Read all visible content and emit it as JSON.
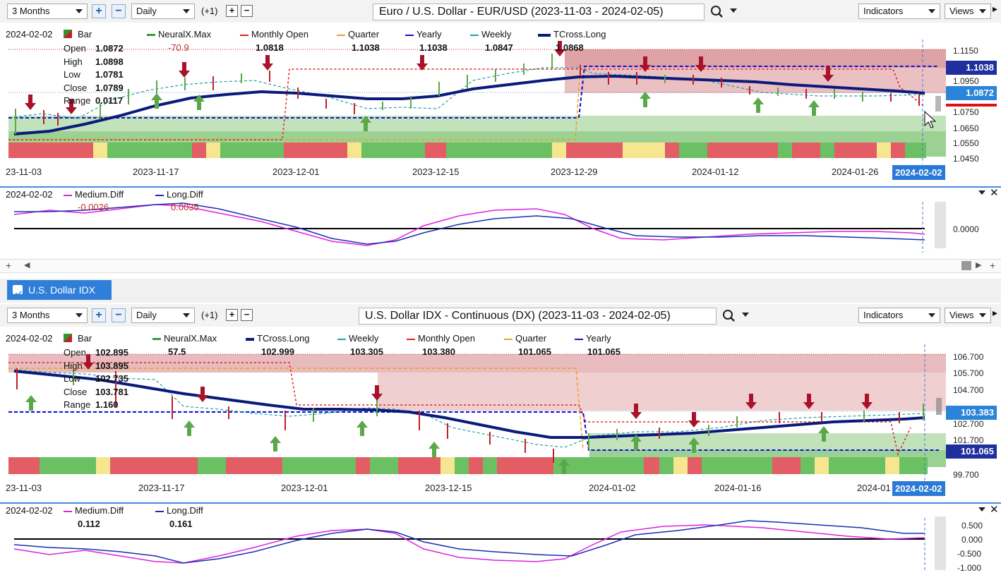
{
  "top": {
    "toolbar": {
      "period": "3 Months",
      "interval": "Daily",
      "offset": "(+1)",
      "title": "Euro / U.S. Dollar - EUR/USD (2023-11-03 - 2024-02-05)",
      "indicators": "Indicators",
      "views": "Views"
    },
    "legend": {
      "date": "2024-02-02",
      "bar": "Bar",
      "neuralx": "NeuralX.Max",
      "monthly_open": "Monthly Open",
      "quarter": "Quarter",
      "yearly": "Yearly",
      "weekly": "Weekly",
      "tcross": "TCross.Long",
      "neuralx_val": "-70.9",
      "monthly_open_val": "1.0818",
      "quarter_val": "1.1038",
      "yearly_val": "1.1038",
      "weekly_val": "1.0847",
      "tcross_val": "1.0868"
    },
    "ohlc": {
      "open_label": "Open",
      "open": "1.0872",
      "high_label": "High",
      "high": "1.0898",
      "low_label": "Low",
      "low": "1.0781",
      "close_label": "Close",
      "close": "1.0789",
      "range_label": "Range",
      "range": "0.0117"
    },
    "y_ticks": [
      "1.1150",
      "1.0950",
      "1.0750",
      "1.0650",
      "1.0550",
      "1.0450"
    ],
    "price_tag_yearly": "1.1038",
    "price_tag_current": "1.0872",
    "x_ticks": [
      "23-11-03",
      "2023-11-17",
      "2023-12-01",
      "2023-12-15",
      "2023-12-29",
      "2024-01-12",
      "2024-01-26"
    ],
    "date_tag": "2024-02-02",
    "sub": {
      "date": "2024-02-02",
      "medium": "Medium.Diff",
      "long": "Long.Diff",
      "medium_val": "-0.0026",
      "long_val": "0.0035",
      "y_tick": "0.0000"
    }
  },
  "bottom": {
    "tab": "U.S. Dollar IDX (DX)",
    "toolbar": {
      "period": "3 Months",
      "interval": "Daily",
      "offset": "(+1)",
      "title": "U.S. Dollar IDX - Continuous (DX) (2023-11-03 - 2024-02-05)",
      "indicators": "Indicators",
      "views": "Views"
    },
    "legend": {
      "date": "2024-02-02",
      "bar": "Bar",
      "neuralx": "NeuralX.Max",
      "tcross": "TCross.Long",
      "weekly": "Weekly",
      "monthly_open": "Monthly Open",
      "quarter": "Quarter",
      "yearly": "Yearly",
      "neuralx_val": "57.5",
      "tcross_val": "102.999",
      "weekly_val": "103.305",
      "monthly_open_val": "103.380",
      "quarter_val": "101.065",
      "yearly_val": "101.065"
    },
    "ohlc": {
      "open_label": "Open",
      "open": "102.895",
      "high_label": "High",
      "high": "103.895",
      "low_label": "Low",
      "low": "102.735",
      "close_label": "Close",
      "close": "103.781",
      "range_label": "Range",
      "range": "1.160"
    },
    "y_ticks": [
      "106.700",
      "105.700",
      "104.700",
      "102.700",
      "101.700",
      "99.700"
    ],
    "price_tag_current": "103.383",
    "price_tag_yearly": "101.065",
    "x_ticks": [
      "23-11-03",
      "2023-11-17",
      "2023-12-01",
      "2023-12-15",
      "2024-01-02",
      "2024-01-16",
      "2024-01"
    ],
    "date_tag": "2024-02-02",
    "sub": {
      "date": "2024-02-02",
      "medium": "Medium.Diff",
      "long": "Long.Diff",
      "medium_val": "0.112",
      "long_val": "0.161",
      "y_ticks": [
        "0.500",
        "0.000",
        "-0.500",
        "-1.000"
      ]
    }
  },
  "colors": {
    "accent": "#2f7fd8",
    "navy_line": "#0a1a7a",
    "down_arrow": "#a8122a",
    "up_arrow": "#5aa84a",
    "magenta": "#e020e0",
    "yearly_dash": "#1010d0",
    "monthly_dash": "#e02020",
    "quarter_dash": "#f0a020",
    "weekly_dash": "#20a0a0"
  }
}
